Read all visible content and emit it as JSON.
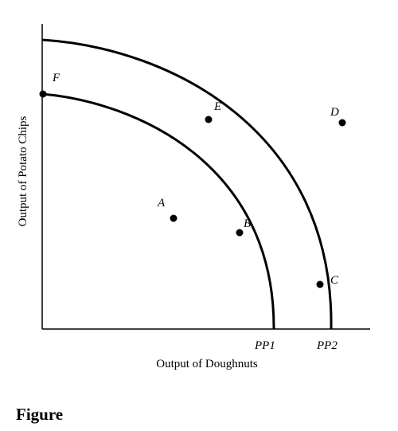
{
  "caption": "Figure",
  "axes": {
    "xlabel": "Output of Doughnuts",
    "ylabel": "Output of Potato Chips"
  },
  "curves": [
    {
      "label": "PP1"
    },
    {
      "label": "PP2"
    }
  ],
  "points": [
    {
      "label": "A"
    },
    {
      "label": "B"
    },
    {
      "label": "C"
    },
    {
      "label": "D"
    },
    {
      "label": "E"
    },
    {
      "label": "F"
    }
  ],
  "colors": {
    "ink": "#000000",
    "background": "#ffffff"
  }
}
